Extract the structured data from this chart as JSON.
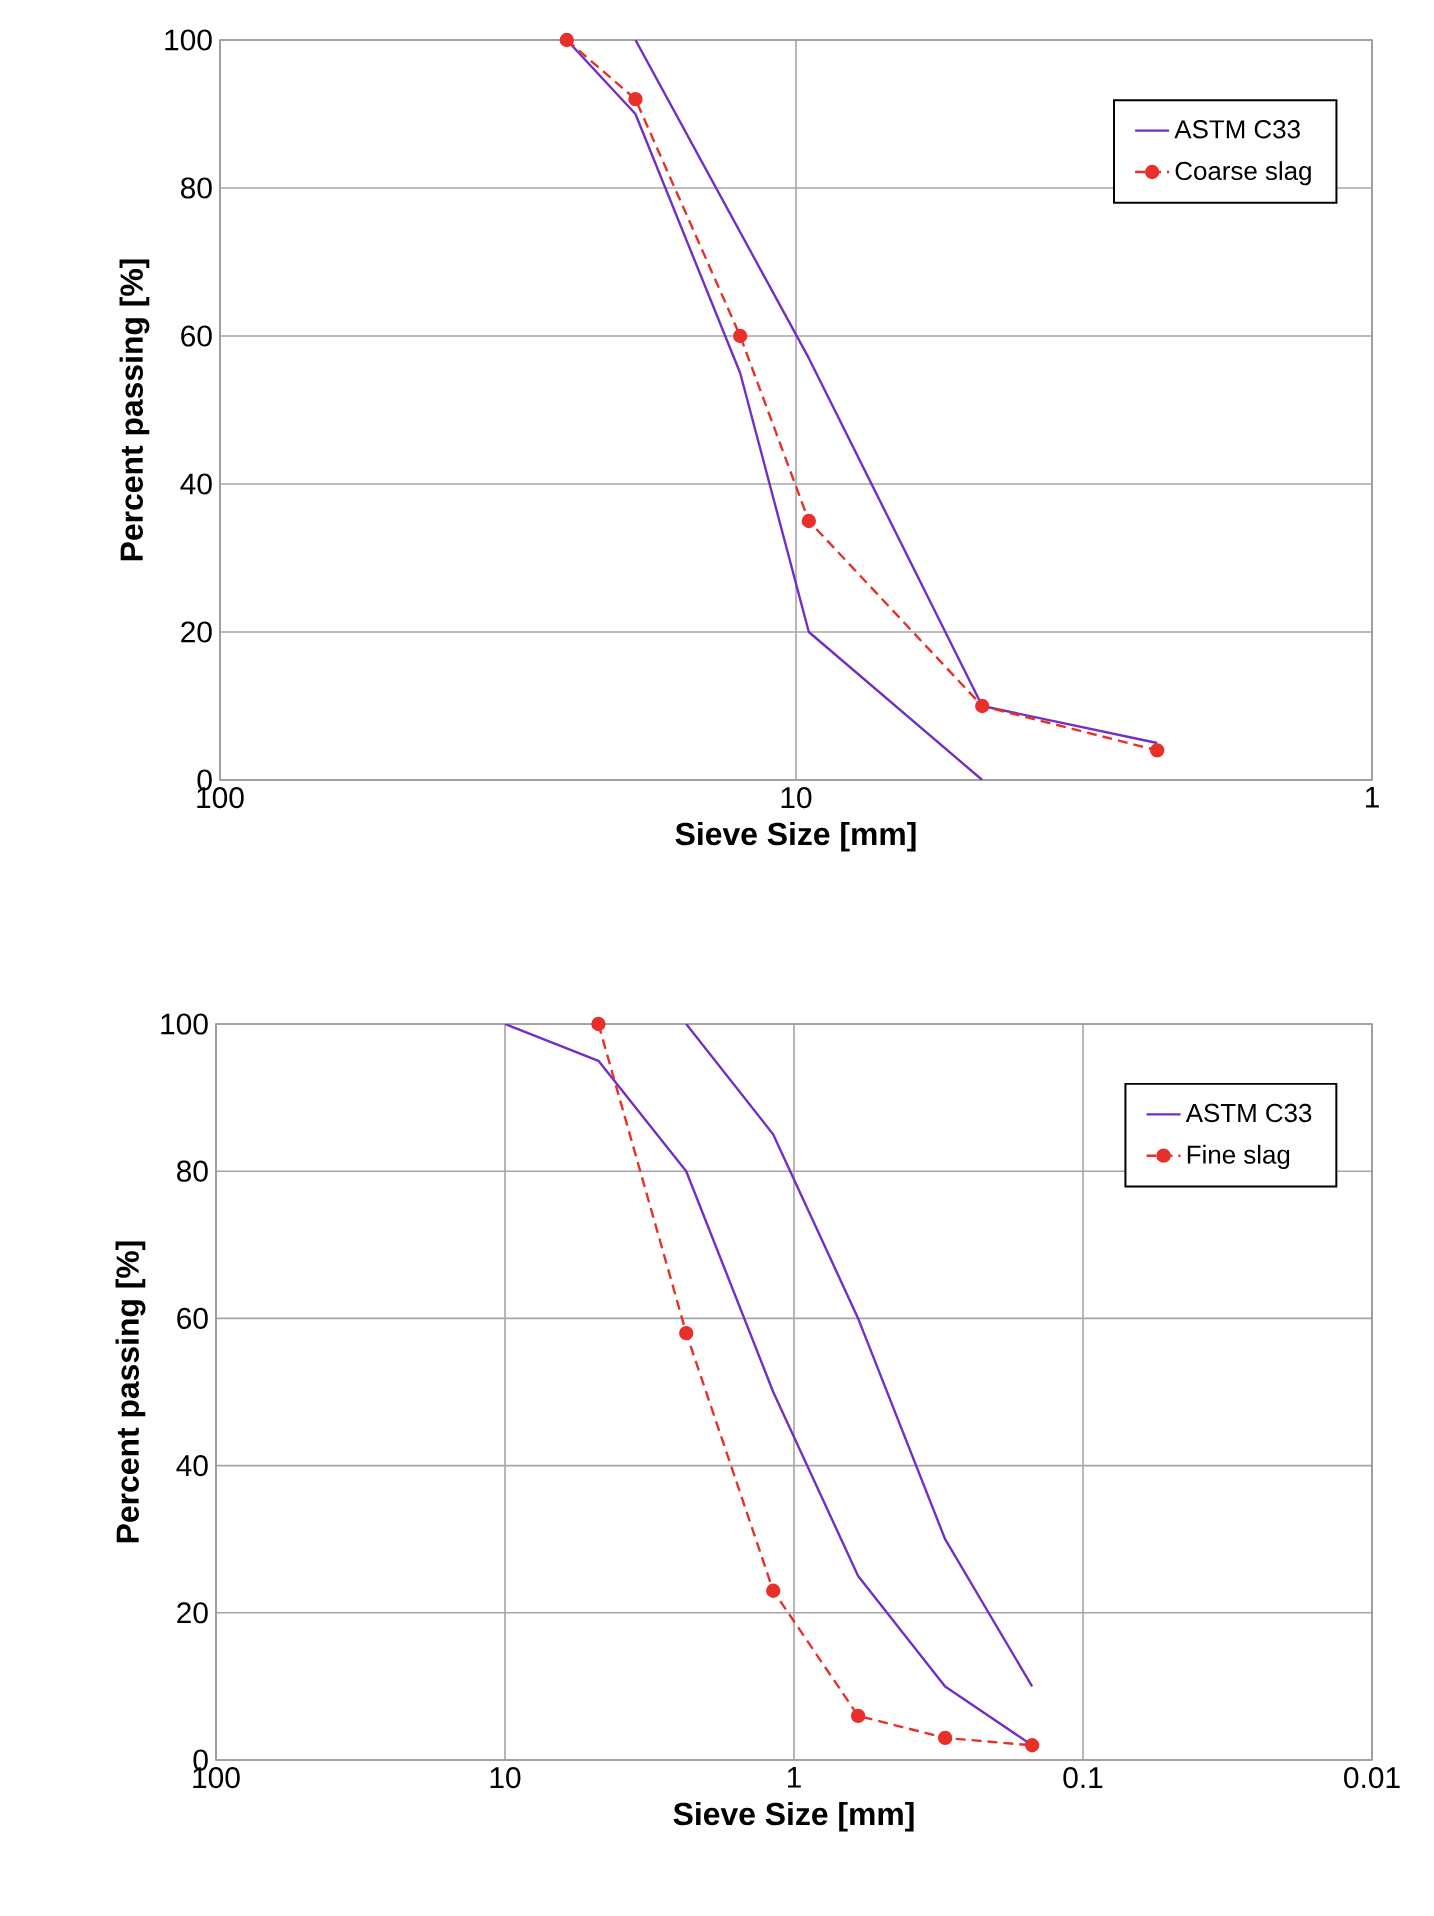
{
  "chart_data": [
    {
      "type": "line",
      "xlabel": "Sieve Size [mm]",
      "ylabel": "Percent passing [%]",
      "log": "x",
      "xlim": [
        100,
        1
      ],
      "ylim": [
        0,
        100
      ],
      "xticks": [
        100,
        10,
        1
      ],
      "yticks": [
        0,
        20,
        40,
        60,
        80,
        100
      ],
      "grid": true,
      "legend": "top right",
      "series": [
        {
          "name": "ASTM C33",
          "color": "#7030c8",
          "marker": "none",
          "line_style": "solid",
          "x": [
            25,
            19,
            12.5,
            9.5,
            4.75
          ],
          "values": [
            100,
            90,
            55,
            20,
            0
          ]
        },
        {
          "color": "#7030c8",
          "marker": "none",
          "line_style": "solid",
          "x": [
            19,
            9.5,
            4.75,
            2.36
          ],
          "values": [
            100,
            57,
            10,
            5
          ]
        },
        {
          "name": "Coarse slag",
          "color": "#e8302a",
          "marker": "circle",
          "line_style": "dashed",
          "x": [
            25,
            19,
            12.5,
            9.5,
            4.75,
            2.36
          ],
          "values": [
            100,
            92,
            60,
            35,
            10,
            4
          ]
        }
      ]
    },
    {
      "type": "line",
      "xlabel": "Sieve Size [mm]",
      "ylabel": "Percent passing [%]",
      "log": "x",
      "xlim": [
        100,
        0.01
      ],
      "ylim": [
        0,
        100
      ],
      "xticks": [
        100,
        10,
        1,
        0.1,
        0.01
      ],
      "yticks": [
        0,
        20,
        40,
        60,
        80,
        100
      ],
      "grid": true,
      "legend": "top right",
      "series": [
        {
          "name": "ASTM C33",
          "color": "#7030c8",
          "marker": "none",
          "line_style": "solid",
          "x": [
            10,
            4.75,
            2.36,
            1.18,
            0.6,
            0.3,
            0.15
          ],
          "values": [
            100,
            95,
            80,
            50,
            25,
            10,
            2
          ]
        },
        {
          "color": "#7030c8",
          "marker": "none",
          "line_style": "solid",
          "x": [
            2.36,
            1.18,
            0.6,
            0.3,
            0.15
          ],
          "values": [
            100,
            85,
            60,
            30,
            10
          ]
        },
        {
          "name": "Fine slag",
          "color": "#e8302a",
          "marker": "circle",
          "line_style": "dashed",
          "x": [
            4.75,
            2.36,
            1.18,
            0.6,
            0.3,
            0.15
          ],
          "values": [
            100,
            58,
            23,
            6,
            3,
            2
          ]
        }
      ]
    }
  ]
}
